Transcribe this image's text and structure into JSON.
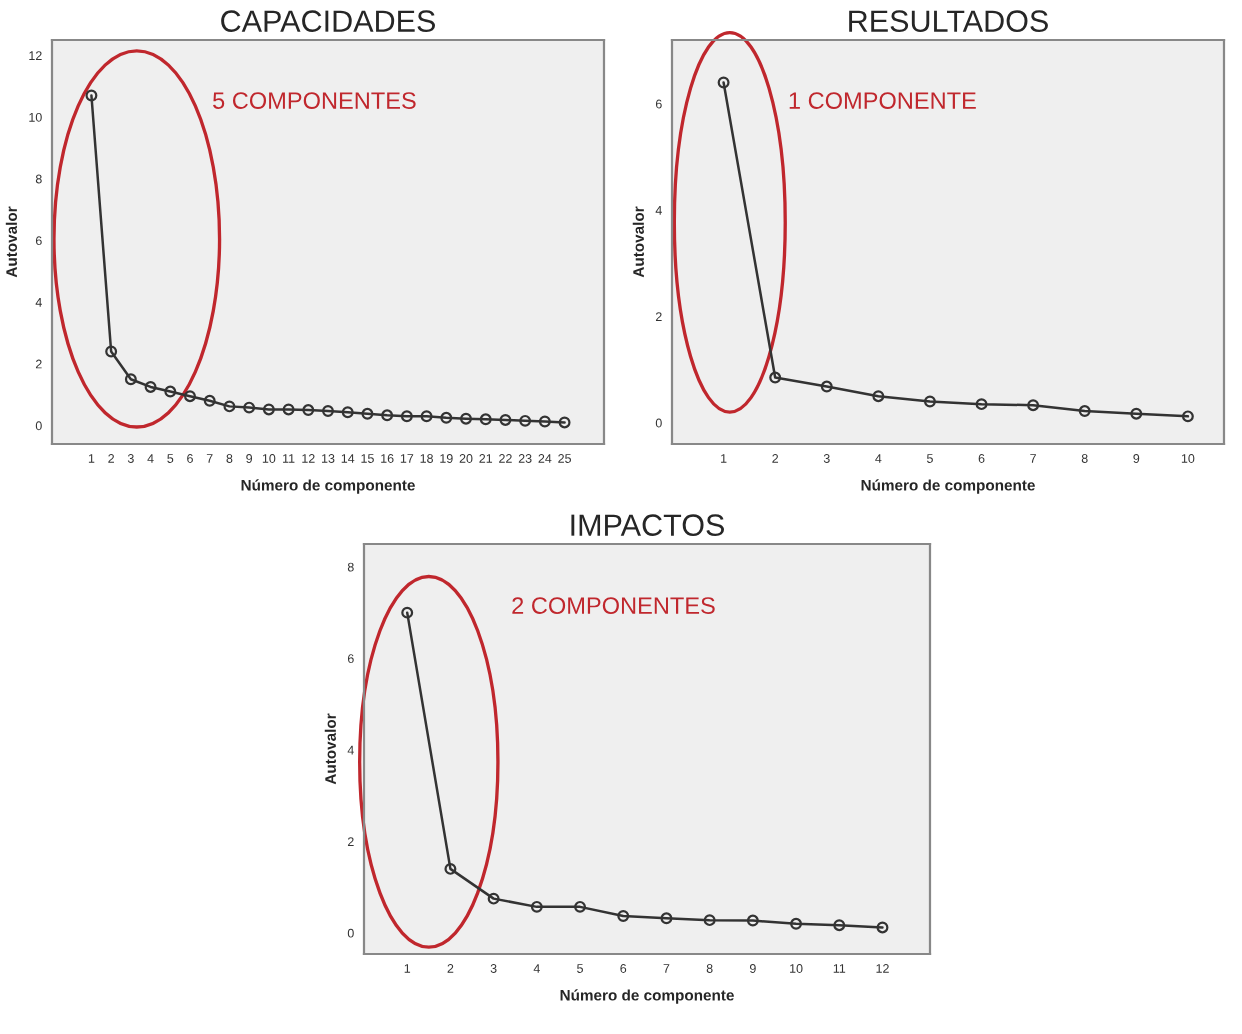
{
  "chart_data": [
    {
      "type": "line",
      "title": "CAPACIDADES",
      "xlabel": "Número de componente",
      "ylabel": "Autovalor",
      "annotations": [
        "5 COMPONENTES"
      ],
      "x": [
        1,
        2,
        3,
        4,
        5,
        6,
        7,
        8,
        9,
        10,
        11,
        12,
        13,
        14,
        15,
        16,
        17,
        18,
        19,
        20,
        21,
        22,
        23,
        24,
        25
      ],
      "series": [
        {
          "color": "#333333",
          "values": [
            10.7,
            2.4,
            1.5,
            1.25,
            1.1,
            0.95,
            0.8,
            0.62,
            0.58,
            0.52,
            0.52,
            0.5,
            0.47,
            0.43,
            0.38,
            0.33,
            0.3,
            0.3,
            0.25,
            0.22,
            0.2,
            0.18,
            0.15,
            0.13,
            0.1
          ]
        }
      ],
      "xlim": [
        -1,
        27
      ],
      "xticks": [
        1,
        2,
        3,
        4,
        5,
        6,
        7,
        8,
        9,
        10,
        11,
        12,
        13,
        14,
        15,
        16,
        17,
        18,
        19,
        20,
        21,
        22,
        23,
        24,
        25
      ],
      "ylim": [
        -0.6,
        12.5
      ],
      "yticks": [
        0,
        2,
        4,
        6,
        8,
        10,
        12
      ],
      "marker": "circle",
      "line_style": "solid",
      "grid": false,
      "legend": false
    },
    {
      "type": "line",
      "title": "RESULTADOS",
      "xlabel": "Número de componente",
      "ylabel": "Autovalor",
      "annotations": [
        "1 COMPONENTE"
      ],
      "x": [
        1,
        2,
        3,
        4,
        5,
        6,
        7,
        8,
        9,
        10
      ],
      "series": [
        {
          "color": "#333333",
          "values": [
            6.4,
            0.85,
            0.68,
            0.5,
            0.4,
            0.35,
            0.33,
            0.22,
            0.17,
            0.12
          ]
        }
      ],
      "xlim": [
        0,
        10.7
      ],
      "xticks": [
        1,
        2,
        3,
        4,
        5,
        6,
        7,
        8,
        9,
        10
      ],
      "ylim": [
        -0.4,
        7.2
      ],
      "yticks": [
        0,
        2,
        4,
        6
      ],
      "marker": "circle",
      "line_style": "solid",
      "grid": false,
      "legend": false
    },
    {
      "type": "line",
      "title": "IMPACTOS",
      "xlabel": "Número de componente",
      "ylabel": "Autovalor",
      "annotations": [
        "2 COMPONENTES"
      ],
      "x": [
        1,
        2,
        3,
        4,
        5,
        6,
        7,
        8,
        9,
        10,
        11,
        12
      ],
      "series": [
        {
          "color": "#333333",
          "values": [
            7.0,
            1.4,
            0.75,
            0.57,
            0.57,
            0.37,
            0.32,
            0.28,
            0.27,
            0.2,
            0.17,
            0.12
          ]
        }
      ],
      "xlim": [
        0,
        13.1
      ],
      "xticks": [
        1,
        2,
        3,
        4,
        5,
        6,
        7,
        8,
        9,
        10,
        11,
        12
      ],
      "ylim": [
        -0.46,
        8.5
      ],
      "yticks": [
        0,
        2,
        4,
        6,
        8
      ],
      "marker": "circle",
      "line_style": "solid",
      "grid": false,
      "legend": false
    }
  ]
}
